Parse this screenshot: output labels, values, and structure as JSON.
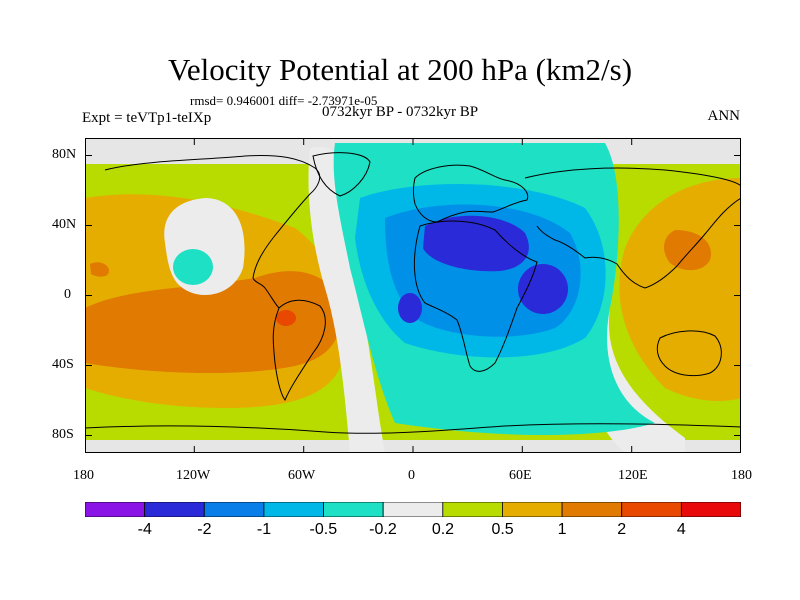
{
  "title": "Velocity Potential at 200 hPa (km2/s)",
  "stats": "rmsd= 0.946001 diff= -2.73971e-05",
  "experiment": "Expt = teVTp1-teIXp",
  "period": "0732kyr BP - 0732kyr BP",
  "season": "ANN",
  "map": {
    "projection": "cylindrical equidistant",
    "lat_range": [
      -90,
      90
    ],
    "lon_range": [
      -180,
      180
    ],
    "lat_ticks": [
      "80N",
      "40N",
      "0",
      "40S",
      "80S"
    ],
    "lon_ticks": [
      "180",
      "120W",
      "60W",
      "0",
      "60E",
      "120E",
      "180"
    ],
    "fields": [
      {
        "level": "0.2 to 0.5",
        "region": "background field",
        "color": "#b8dc00"
      },
      {
        "level": "0.5 to 1",
        "region": "Pacific / Americas",
        "color": "#e5ad00"
      },
      {
        "level": "1 to 2",
        "region": "South-east Pacific",
        "color": "#e07a00"
      },
      {
        "level": "2 to 4",
        "region": "South America",
        "color": "#e84800"
      },
      {
        "level": "-0.2 to 0.2",
        "region": "North Pacific",
        "color": "#ececec"
      },
      {
        "level": "-0.5 to -0.2",
        "region": "Atlantic / Africa / Indian Ocean",
        "color": "#1de0c4"
      },
      {
        "level": "-1 to -0.5",
        "region": "Africa",
        "color": "#00b8e8"
      },
      {
        "level": "-2 to -1",
        "region": "Africa",
        "color": "#0090e8"
      },
      {
        "level": "-4 to -2",
        "region": "Middle East / Indian Ocean",
        "color": "#2a2ad8"
      }
    ]
  },
  "colorbar": {
    "labels": [
      "-4",
      "-2",
      "-1",
      "-0.5",
      "-0.2",
      "0.2",
      "0.5",
      "1",
      "2",
      "4"
    ],
    "colors": [
      "#8a14e6",
      "#2a2ad8",
      "#0a7ee8",
      "#00b8e8",
      "#1de0c4",
      "#ececec",
      "#b8dc00",
      "#e5ad00",
      "#e07a00",
      "#e84800",
      "#e80a0a"
    ]
  }
}
